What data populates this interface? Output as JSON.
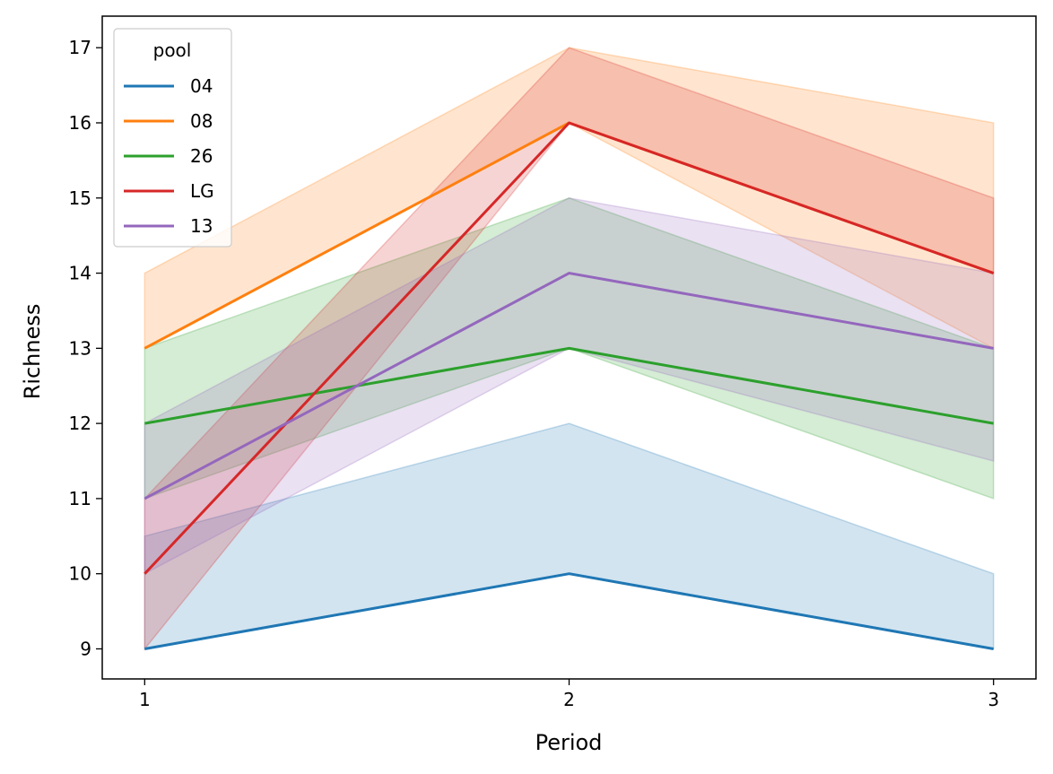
{
  "chart_data": {
    "type": "line",
    "title": "",
    "xlabel": "Period",
    "ylabel": "Richness",
    "x": [
      1,
      2,
      3
    ],
    "xticks": [
      "1",
      "2",
      "3"
    ],
    "yticks": [
      9,
      10,
      11,
      12,
      13,
      14,
      15,
      16,
      17
    ],
    "xlim": [
      0.9,
      3.1
    ],
    "ylim": [
      8.6,
      17.42
    ],
    "grid": false,
    "legend": {
      "title": "pool",
      "placement": "top-left"
    },
    "series": [
      {
        "name": "04",
        "color": "#1f77b4",
        "values": [
          9,
          10,
          9
        ],
        "lower": [
          9,
          10,
          9
        ],
        "upper": [
          10.5,
          12,
          10
        ]
      },
      {
        "name": "08",
        "color": "#ff7f0e",
        "values": [
          13,
          16,
          14
        ],
        "lower": [
          13,
          16,
          13
        ],
        "upper": [
          14,
          17,
          16
        ]
      },
      {
        "name": "26",
        "color": "#2ca02c",
        "values": [
          12,
          13,
          12
        ],
        "lower": [
          11,
          13,
          11
        ],
        "upper": [
          13,
          15,
          13
        ]
      },
      {
        "name": "LG",
        "color": "#d62728",
        "values": [
          10,
          16,
          14
        ],
        "lower": [
          9,
          16,
          14
        ],
        "upper": [
          11,
          17,
          15
        ]
      },
      {
        "name": "13",
        "color": "#9467bd",
        "values": [
          11,
          14,
          13
        ],
        "lower": [
          10,
          13,
          11.5
        ],
        "upper": [
          12,
          15,
          14
        ]
      }
    ]
  }
}
